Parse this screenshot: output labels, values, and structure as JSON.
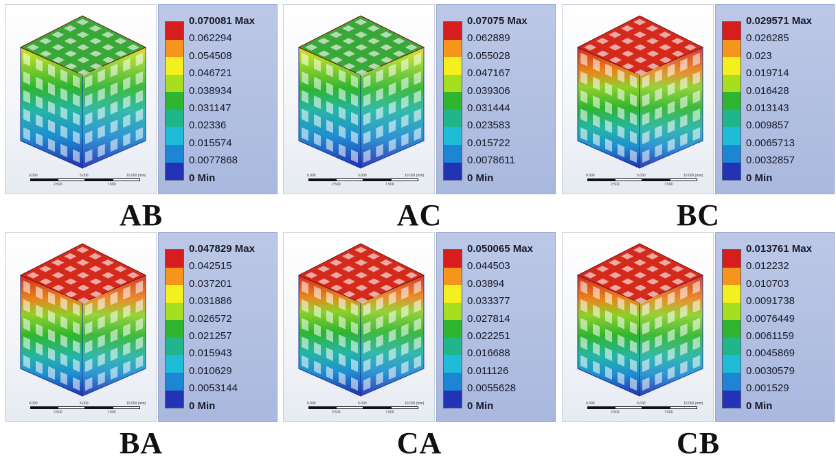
{
  "panels": [
    {
      "label": "AB",
      "max": "0.070081 Max",
      "ticks": [
        "0.062294",
        "0.054508",
        "0.046721",
        "0.038934",
        "0.031147",
        "0.02336",
        "0.015574",
        "0.0077868"
      ],
      "min": "0 Min",
      "scale": {
        "a": "0.000",
        "b": "5.000",
        "c": "10.000 (mm)",
        "d": "2.500",
        "e": "7.500"
      },
      "band_fractions": [
        0.14,
        0.38,
        0.48
      ],
      "top_color": "#3aa838"
    },
    {
      "label": "AC",
      "max": "0.07075 Max",
      "ticks": [
        "0.062889",
        "0.055028",
        "0.047167",
        "0.039306",
        "0.031444",
        "0.023583",
        "0.015722",
        "0.0078611"
      ],
      "min": "0 Min",
      "scale": {
        "a": "0.000",
        "b": "5.000",
        "c": "10.000 (mm)",
        "d": "2.500",
        "e": "7.500"
      },
      "band_fractions": [
        0.16,
        0.36,
        0.48
      ],
      "top_color": "#3aa838"
    },
    {
      "label": "BC",
      "max": "0.029571 Max",
      "ticks": [
        "0.026285",
        "0.023",
        "0.019714",
        "0.016428",
        "0.013143",
        "0.009857",
        "0.0065713",
        "0.0032857"
      ],
      "min": "0 Min",
      "scale": {
        "a": "0.000",
        "b": "5.000",
        "c": "10.000 (mm)",
        "d": "2.500",
        "e": "7.500"
      },
      "band_fractions": [
        0.33,
        0.34,
        0.33
      ],
      "top_color": "#d42a1c"
    },
    {
      "label": "BA",
      "max": "0.047829 Max",
      "ticks": [
        "0.042515",
        "0.037201",
        "0.031886",
        "0.026572",
        "0.021257",
        "0.015943",
        "0.010629",
        "0.0053144"
      ],
      "min": "0 Min",
      "scale": {
        "a": "0.000",
        "b": "5.000",
        "c": "10.000 (mm)",
        "d": "2.500",
        "e": "7.500"
      },
      "band_fractions": [
        0.33,
        0.34,
        0.33
      ],
      "top_color": "#d42a1c"
    },
    {
      "label": "CA",
      "max": "0.050065 Max",
      "ticks": [
        "0.044503",
        "0.03894",
        "0.033377",
        "0.027814",
        "0.022251",
        "0.016688",
        "0.011126",
        "0.0055628"
      ],
      "min": "0 Min",
      "scale": {
        "a": "0.000",
        "b": "5.000",
        "c": "10.000 (mm)",
        "d": "2.500",
        "e": "7.500"
      },
      "band_fractions": [
        0.3,
        0.34,
        0.36
      ],
      "top_color": "#d42a1c"
    },
    {
      "label": "CB",
      "max": "0.013761 Max",
      "ticks": [
        "0.012232",
        "0.010703",
        "0.0091738",
        "0.0076449",
        "0.0061159",
        "0.0045869",
        "0.0030579",
        "0.001529"
      ],
      "min": "0 Min",
      "scale": {
        "a": "0.000",
        "b": "5.000",
        "c": "10.000 (mm)",
        "d": "2.500",
        "e": "7.500"
      },
      "band_fractions": [
        0.33,
        0.34,
        0.33
      ],
      "top_color": "#d42a1c"
    }
  ],
  "colormap": [
    "#d71d1d",
    "#f5951b",
    "#f4ef1e",
    "#a6de20",
    "#2fb52f",
    "#20b58a",
    "#1fbcd8",
    "#1c86d4",
    "#2233b6"
  ]
}
